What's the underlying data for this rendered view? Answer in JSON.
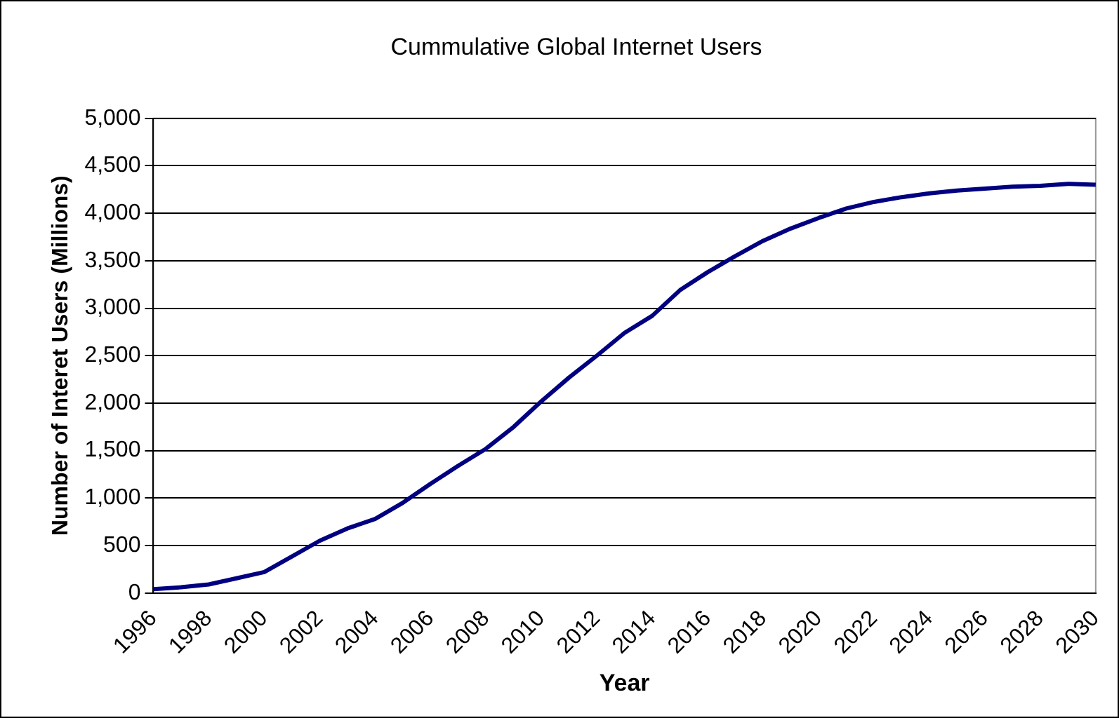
{
  "chart_data": {
    "type": "line",
    "title": "Cummulative Global Internet Users",
    "xlabel": "Year",
    "ylabel": "Number of Interet Users (Millions)",
    "categories": [
      "1996",
      null,
      "1998",
      null,
      "2000",
      null,
      "2002",
      null,
      "2004",
      null,
      "2006",
      null,
      "2008",
      null,
      "2010",
      null,
      "2012",
      null,
      "2014",
      null,
      "2016",
      null,
      "2018",
      null,
      "2020",
      null,
      "2022",
      null,
      "2024",
      null,
      "2026",
      null,
      "2028",
      null,
      "2030"
    ],
    "series": [
      {
        "color": "#000080",
        "values": [
          40,
          60,
          90,
          155,
          220,
          385,
          550,
          680,
          780,
          950,
          1150,
          1340,
          1520,
          1750,
          2020,
          2270,
          2500,
          2740,
          2920,
          3190,
          3380,
          3550,
          3710,
          3840,
          3950,
          4050,
          4120,
          4170,
          4210,
          4240,
          4260,
          4280,
          4290,
          4310,
          4300
        ]
      }
    ],
    "ylim": [
      0,
      5000
    ],
    "yticks": [
      {
        "value": 0,
        "label": "0"
      },
      {
        "value": 500,
        "label": "500"
      },
      {
        "value": 1000,
        "label": "1,000"
      },
      {
        "value": 1500,
        "label": "1,500"
      },
      {
        "value": 2000,
        "label": "2,000"
      },
      {
        "value": 2500,
        "label": "2,500"
      },
      {
        "value": 3000,
        "label": "3,000"
      },
      {
        "value": 3500,
        "label": "3,500"
      },
      {
        "value": 4000,
        "label": "4,000"
      },
      {
        "value": 4500,
        "label": "4,500"
      },
      {
        "value": 5000,
        "label": "5,000"
      }
    ],
    "grid": "y",
    "legend": false,
    "marker": "none",
    "line_style": "solid"
  }
}
